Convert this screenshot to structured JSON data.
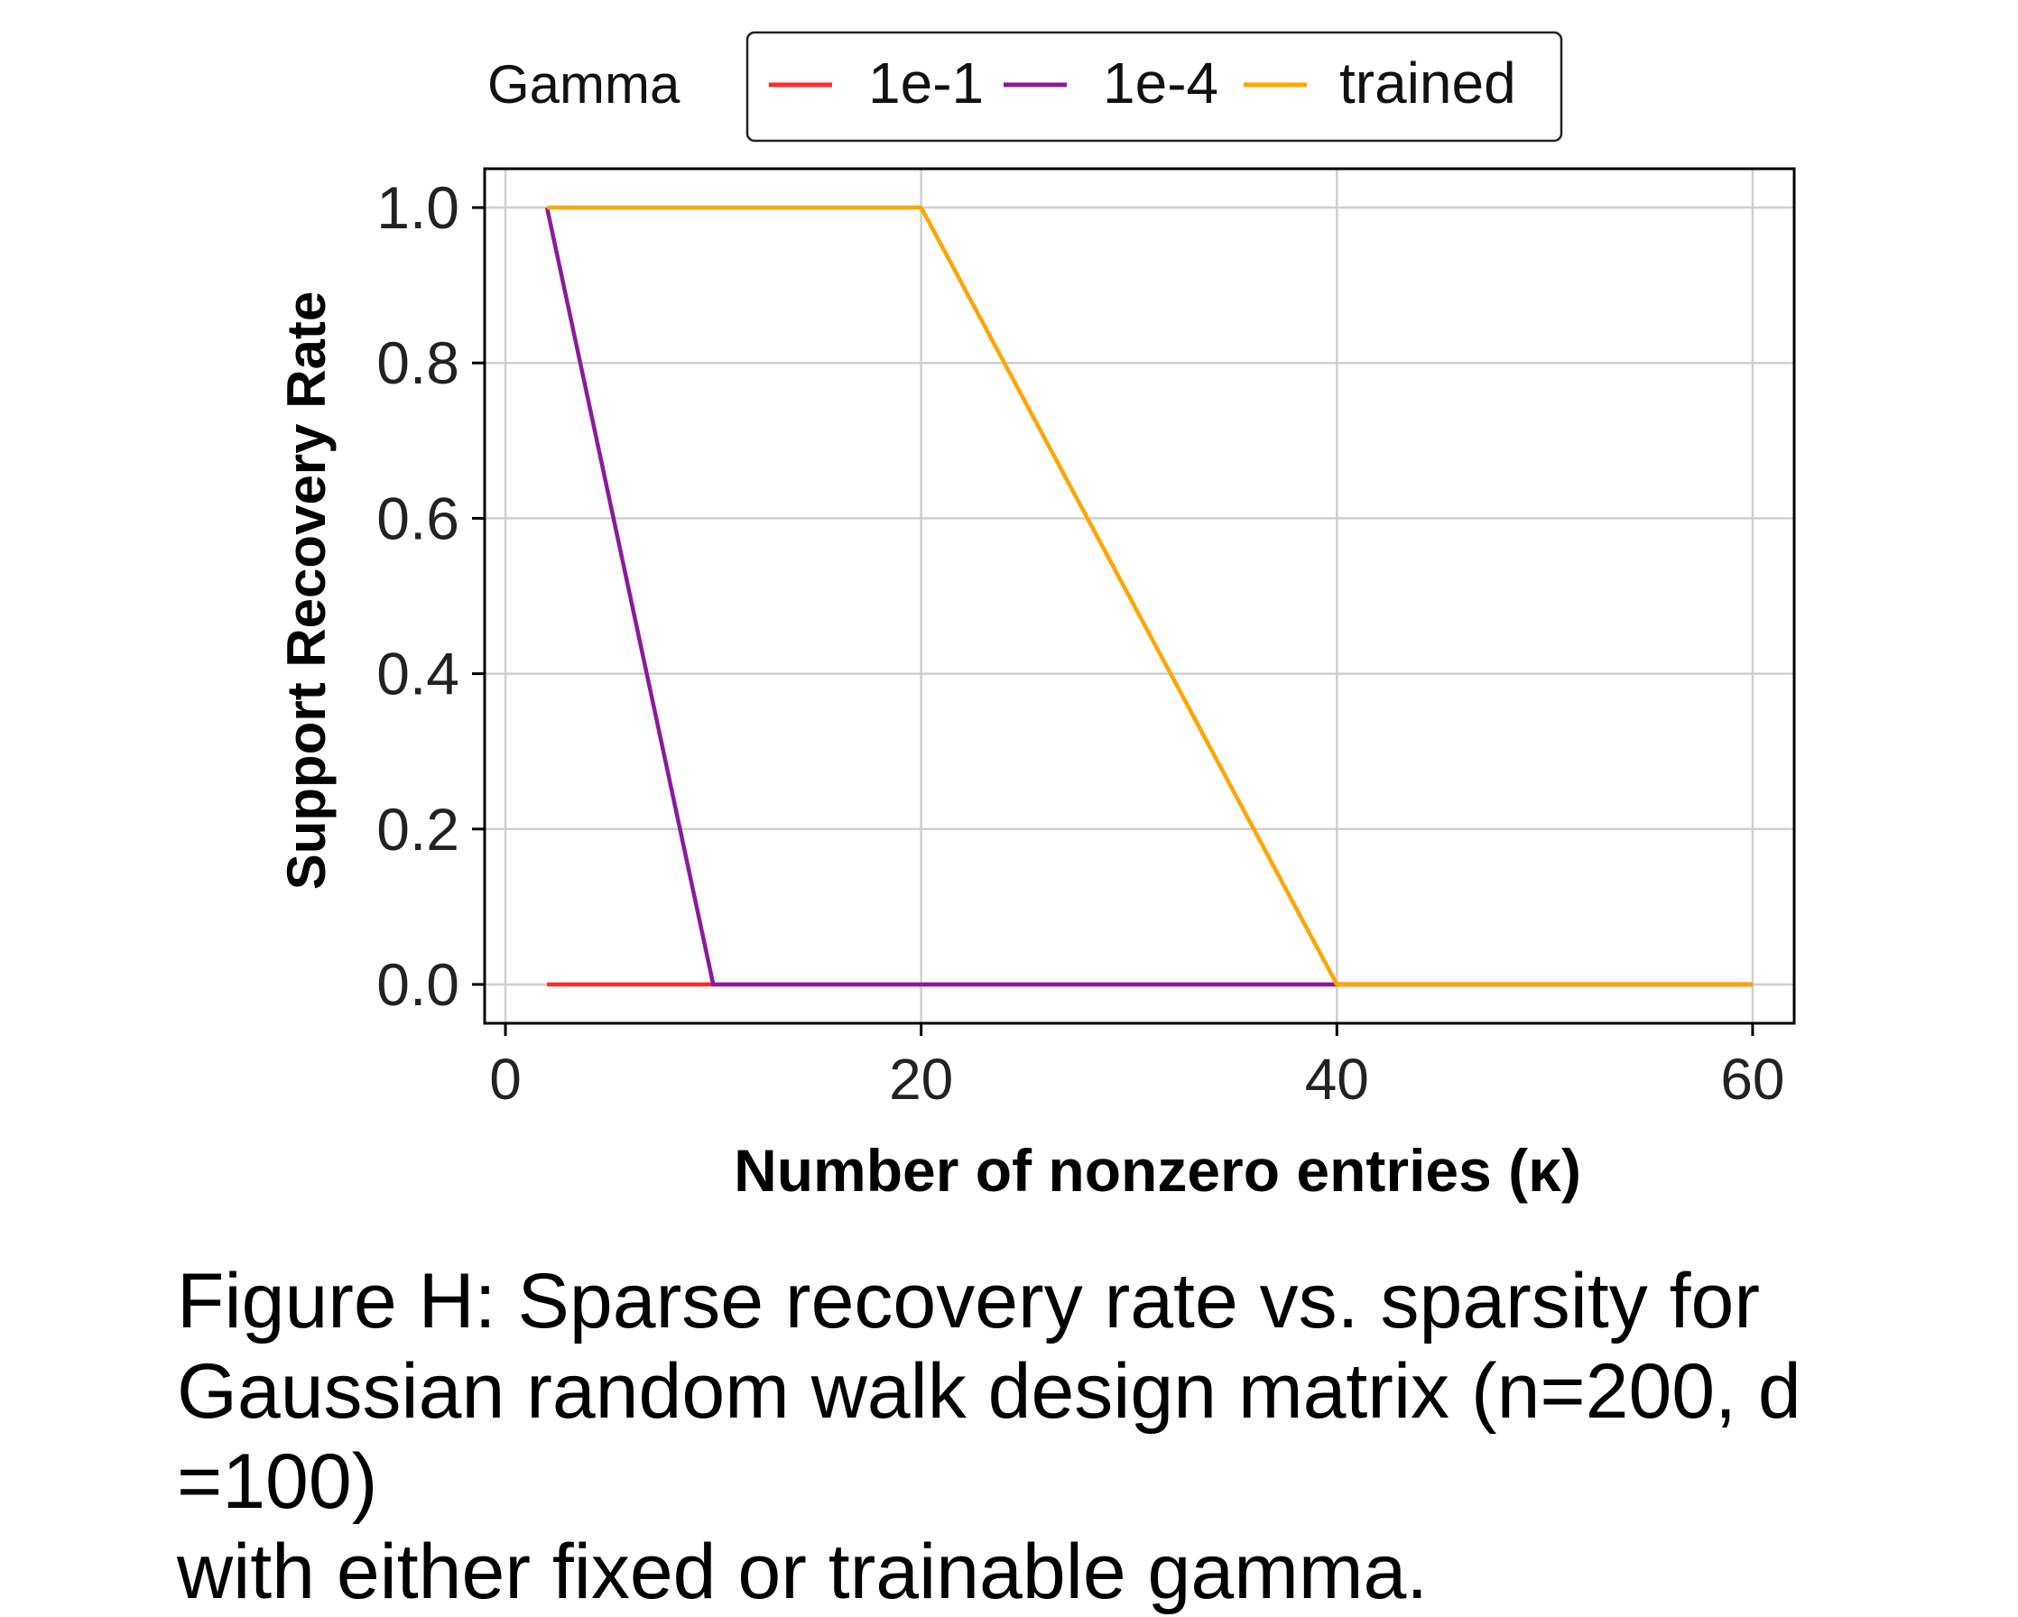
{
  "chart_data": {
    "type": "line",
    "title": "",
    "xlabel": "Number of nonzero entries (κ)",
    "ylabel": "Support Recovery Rate",
    "xlim": [
      -1,
      62
    ],
    "ylim": [
      -0.05,
      1.05
    ],
    "xticks": [
      0,
      20,
      40,
      60
    ],
    "xtick_labels": [
      "0",
      "20",
      "40",
      "60"
    ],
    "yticks": [
      0.0,
      0.2,
      0.4,
      0.6,
      0.8,
      1.0
    ],
    "ytick_labels": [
      "0.0",
      "0.2",
      "0.4",
      "0.6",
      "0.8",
      "1.0"
    ],
    "grid": true,
    "legend": {
      "title": "Gamma",
      "placement": "top-center, outside plot"
    },
    "series": [
      {
        "name": "1e-1",
        "color": "#ff2a2a",
        "x": [
          2,
          10,
          20,
          40,
          60
        ],
        "y": [
          0.0,
          0.0,
          0.0,
          0.0,
          0.0
        ]
      },
      {
        "name": "1e-4",
        "color": "#8b1a9c",
        "x": [
          2,
          10,
          20,
          40,
          60
        ],
        "y": [
          1.0,
          0.0,
          0.0,
          0.0,
          0.0
        ]
      },
      {
        "name": "trained",
        "color": "#ffa500",
        "x": [
          2,
          10,
          20,
          40,
          60
        ],
        "y": [
          1.0,
          1.0,
          1.0,
          0.0,
          0.0
        ]
      }
    ]
  },
  "caption": {
    "line1": "Figure H: Sparse recovery rate vs. sparsity for",
    "line2": "Gaussian random walk design matrix (n=200, d =100)",
    "line3": "with either fixed or trainable gamma."
  }
}
